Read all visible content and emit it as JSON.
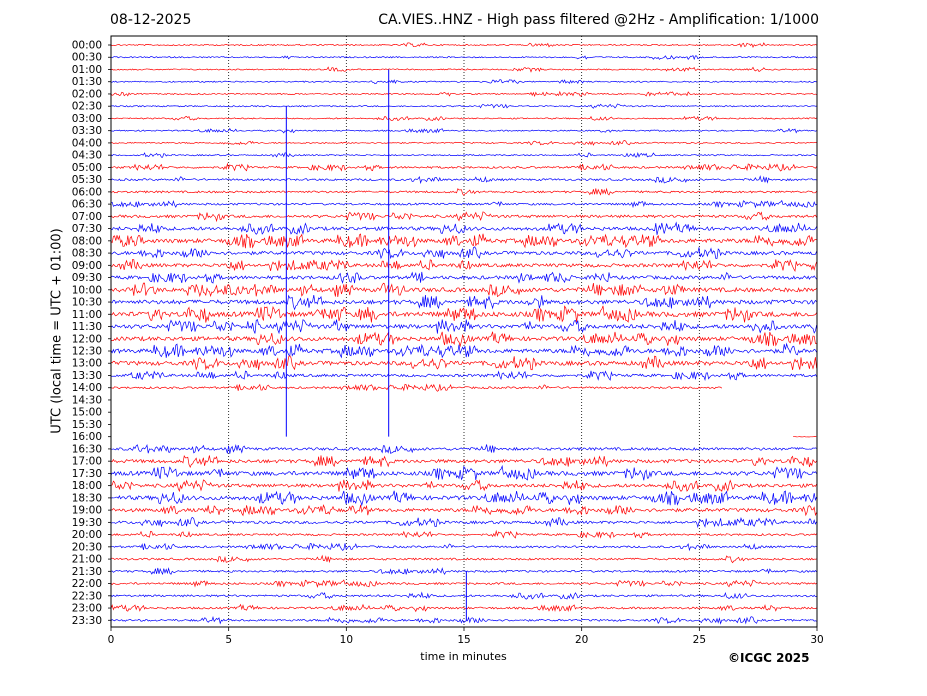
{
  "header": {
    "date": "08-12-2025",
    "title": "CA.VIES..HNZ - High pass filtered @2Hz - Amplification: 1/1000"
  },
  "footer": {
    "copyright": "©ICGC 2025"
  },
  "chart_data": {
    "type": "line",
    "title": "CA.VIES..HNZ - High pass filtered @2Hz - Amplification: 1/1000",
    "xlabel": "time in minutes",
    "ylabel": "UTC (local time = UTC + 01:00)",
    "xlim": [
      0,
      30
    ],
    "x_ticks": [
      0,
      5,
      10,
      15,
      20,
      25,
      30
    ],
    "vertical_gridlines": [
      5,
      10,
      15,
      20,
      25
    ],
    "row_labels": [
      "00:00",
      "00:30",
      "01:00",
      "01:30",
      "02:00",
      "02:30",
      "03:00",
      "03:30",
      "04:00",
      "04:30",
      "05:00",
      "05:30",
      "06:00",
      "06:30",
      "07:00",
      "07:30",
      "08:00",
      "08:30",
      "09:00",
      "09:30",
      "10:00",
      "10:30",
      "11:00",
      "11:30",
      "12:00",
      "12:30",
      "13:00",
      "13:30",
      "14:00",
      "14:30",
      "15:00",
      "15:30",
      "16:00",
      "16:30",
      "17:00",
      "17:30",
      "18:00",
      "18:30",
      "19:00",
      "19:30",
      "20:00",
      "20:30",
      "21:00",
      "21:30",
      "22:00",
      "22:30",
      "23:00",
      "23:30"
    ],
    "colors": [
      "#ff0000",
      "#0000ff"
    ],
    "noise_level": [
      1,
      1,
      1,
      1,
      1,
      1,
      1,
      1,
      1,
      1,
      2,
      2,
      2,
      2,
      3,
      4,
      5,
      4,
      4,
      4,
      5,
      5,
      6,
      5,
      5,
      5,
      5,
      3,
      2,
      0,
      0,
      0,
      0,
      3,
      4,
      5,
      4,
      5,
      4,
      3,
      2,
      2,
      2,
      2,
      2,
      2,
      2,
      2
    ],
    "trace_extent_minutes": [
      [
        0,
        30
      ],
      [
        0,
        30
      ],
      [
        0,
        30
      ],
      [
        0,
        30
      ],
      [
        0,
        30
      ],
      [
        0,
        30
      ],
      [
        0,
        30
      ],
      [
        0,
        30
      ],
      [
        0,
        30
      ],
      [
        0,
        30
      ],
      [
        0,
        30
      ],
      [
        0,
        30
      ],
      [
        0,
        30
      ],
      [
        0,
        30
      ],
      [
        0,
        30
      ],
      [
        0,
        30
      ],
      [
        0,
        30
      ],
      [
        0,
        30
      ],
      [
        0,
        30
      ],
      [
        0,
        30
      ],
      [
        0,
        30
      ],
      [
        0,
        30
      ],
      [
        0,
        30
      ],
      [
        0,
        30
      ],
      [
        0,
        30
      ],
      [
        0,
        30
      ],
      [
        0,
        30
      ],
      [
        0,
        30
      ],
      [
        0,
        26
      ],
      null,
      null,
      null,
      [
        29,
        30
      ],
      [
        0,
        30
      ],
      [
        0,
        30
      ],
      [
        0,
        30
      ],
      [
        0,
        30
      ],
      [
        0,
        30
      ],
      [
        0,
        30
      ],
      [
        0,
        30
      ],
      [
        0,
        30
      ],
      [
        0,
        30
      ],
      [
        0,
        30
      ],
      [
        0,
        30
      ],
      [
        0,
        30
      ],
      [
        0,
        30
      ],
      [
        0,
        30
      ],
      [
        0,
        30
      ]
    ],
    "events": [
      {
        "minute": 7.45,
        "from_row": 5,
        "to_row": 32,
        "color": "#0000ff"
      },
      {
        "minute": 11.8,
        "from_row": 2,
        "to_row": 32,
        "color": "#0000ff"
      },
      {
        "minute": 15.1,
        "from_row": 43,
        "to_row": 47,
        "color": "#0000ff"
      }
    ]
  }
}
